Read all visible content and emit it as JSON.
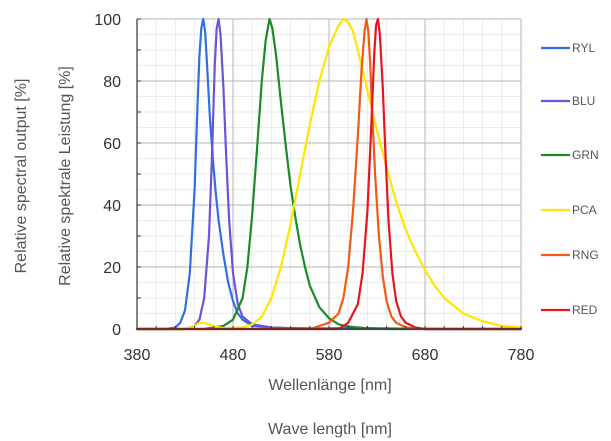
{
  "chart_data": {
    "type": "line",
    "xlabel": "Wellenlänge [nm]",
    "xlabel2": "Wave length [nm]",
    "ylabel": "Relative spektrale Leistung [%]",
    "ylabel2": "Relative spectral output [%]",
    "xlim": [
      380,
      780
    ],
    "ylim": [
      0,
      100
    ],
    "xticks": [
      "380",
      "480",
      "580",
      "680",
      "780"
    ],
    "yticks": [
      "0",
      "20",
      "40",
      "60",
      "80",
      "100"
    ],
    "grid": true,
    "legend_placement": "right",
    "series": [
      {
        "name": "RYL",
        "color": "#2f6fe6",
        "x": [
          380,
          410,
          420,
          425,
          430,
          435,
          440,
          443,
          445,
          447,
          449,
          451,
          453,
          456,
          459,
          462,
          465,
          470,
          475,
          480,
          485,
          490,
          500,
          520,
          540,
          560,
          580,
          600,
          620,
          640,
          660,
          680,
          700,
          720,
          740,
          760,
          780
        ],
        "y": [
          0,
          0,
          0.5,
          2,
          6,
          18,
          45,
          72,
          88,
          97,
          100,
          96,
          85,
          68,
          55,
          44,
          35,
          24,
          15,
          9,
          5,
          3,
          1,
          0.5,
          0.3,
          0.2,
          0.2,
          0.3,
          0.3,
          0.2,
          0.1,
          0.1,
          0,
          0,
          0,
          0,
          0
        ]
      },
      {
        "name": "BLU",
        "color": "#6a55d8",
        "x": [
          380,
          430,
          440,
          445,
          450,
          455,
          458,
          461,
          463,
          465,
          467,
          470,
          473,
          476,
          480,
          485,
          490,
          500,
          520,
          540,
          560,
          600,
          650,
          700,
          780
        ],
        "y": [
          0,
          0,
          1,
          3,
          10,
          30,
          55,
          85,
          97,
          100,
          95,
          78,
          55,
          35,
          18,
          8,
          4,
          1.5,
          0.5,
          0.2,
          0,
          0,
          0,
          0,
          0
        ]
      },
      {
        "name": "GRN",
        "color": "#1a8a2a",
        "x": [
          380,
          450,
          470,
          480,
          490,
          495,
          500,
          505,
          510,
          514,
          518,
          521,
          525,
          530,
          535,
          540,
          545,
          550,
          555,
          560,
          570,
          580,
          590,
          600,
          620,
          650,
          700,
          780
        ],
        "y": [
          0,
          0,
          1,
          3,
          10,
          20,
          37,
          58,
          80,
          93,
          100,
          97,
          88,
          73,
          59,
          46,
          36,
          27,
          20,
          14,
          7,
          3.5,
          1.5,
          0.8,
          0.2,
          0,
          0,
          0
        ]
      },
      {
        "name": "PCA",
        "color": "#ffe600",
        "x": [
          380,
          430,
          440,
          445,
          450,
          455,
          460,
          470,
          490,
          500,
          510,
          520,
          530,
          540,
          550,
          560,
          570,
          580,
          590,
          595,
          600,
          605,
          610,
          620,
          630,
          640,
          650,
          660,
          670,
          680,
          690,
          700,
          720,
          740,
          760,
          780
        ],
        "y": [
          0,
          0,
          1,
          2,
          2,
          1.5,
          0.8,
          0.3,
          0.5,
          1.5,
          4,
          10,
          20,
          34,
          50,
          66,
          80,
          91,
          98,
          100,
          99,
          96,
          90,
          77,
          64,
          52,
          41,
          32,
          25,
          19,
          14,
          10,
          5,
          2.5,
          1,
          0.5
        ]
      },
      {
        "name": "RNG",
        "color": "#f05a14",
        "x": [
          380,
          560,
          580,
          590,
          595,
          600,
          605,
          610,
          614,
          617,
          619,
          621,
          623,
          625,
          628,
          632,
          636,
          640,
          645,
          650,
          660,
          680,
          700,
          780
        ],
        "y": [
          0,
          0,
          2,
          5,
          10,
          20,
          38,
          62,
          84,
          96,
          100,
          96,
          85,
          70,
          50,
          30,
          17,
          9,
          4,
          2,
          0.5,
          0,
          0,
          0
        ]
      },
      {
        "name": "RED",
        "color": "#e8141e",
        "x": [
          380,
          590,
          600,
          610,
          615,
          620,
          624,
          627,
          629,
          631,
          633,
          636,
          639,
          642,
          646,
          650,
          655,
          660,
          670,
          680,
          700,
          780
        ],
        "y": [
          0,
          0,
          2,
          8,
          18,
          38,
          65,
          88,
          98,
          100,
          95,
          78,
          55,
          35,
          18,
          9,
          4,
          2,
          0.5,
          0,
          0,
          0
        ]
      }
    ]
  }
}
